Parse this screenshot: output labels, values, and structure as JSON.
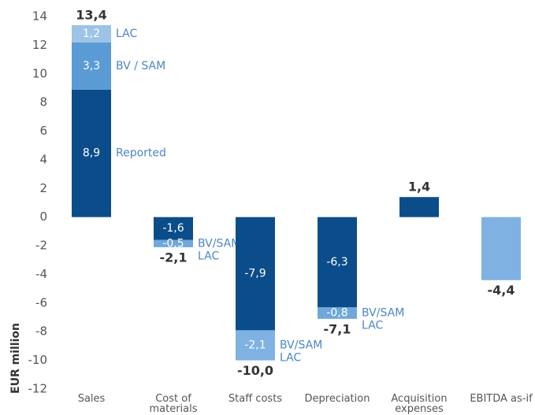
{
  "chart_data": {
    "type": "stacked_bar",
    "ylabel": "EUR million",
    "ylim": [
      -12,
      14
    ],
    "yticks": [
      -12,
      -10,
      -8,
      -6,
      -4,
      -2,
      0,
      2,
      4,
      6,
      8,
      10,
      12,
      14
    ],
    "bars": [
      {
        "category": "Sales",
        "total": 13.4,
        "total_label": "13,4",
        "segments": [
          {
            "value": 8.9,
            "label": "8,9",
            "color": "#0b4d8a",
            "note": [
              "Reported"
            ]
          },
          {
            "value": 3.3,
            "label": "3,3",
            "color": "#5b9bd5",
            "note": [
              "BV / SAM"
            ]
          },
          {
            "value": 1.2,
            "label": "1,2",
            "color": "#9dc3e6",
            "note": [
              "LAC"
            ]
          }
        ]
      },
      {
        "category": "Cost of materials",
        "total": -2.1,
        "total_label": "-2,1",
        "segments": [
          {
            "value": -1.6,
            "label": "-1,6",
            "color": "#0b4d8a"
          },
          {
            "value": -0.5,
            "label": "-0,5",
            "color": "#6fa8dc",
            "note": [
              "BV/SAM",
              "LAC"
            ]
          }
        ]
      },
      {
        "category": "Staff costs",
        "total": -10.0,
        "total_label": "-10,0",
        "segments": [
          {
            "value": -7.9,
            "label": "-7,9",
            "color": "#0b4d8a"
          },
          {
            "value": -2.1,
            "label": "-2,1",
            "color": "#7fb2e3",
            "note": [
              "BV/SAM",
              "LAC"
            ]
          }
        ]
      },
      {
        "category": "Depreciation",
        "total": -7.1,
        "total_label": "-7,1",
        "segments": [
          {
            "value": -6.3,
            "label": "-6,3",
            "color": "#0b4d8a"
          },
          {
            "value": -0.8,
            "label": "-0,8",
            "color": "#6fa8dc",
            "note": [
              "BV/SAM",
              "LAC"
            ]
          }
        ]
      },
      {
        "category": "Acquisition expenses",
        "total": 1.4,
        "total_label": "1,4",
        "segments": [
          {
            "value": 1.4,
            "color": "#0b4d8a"
          }
        ]
      },
      {
        "category": "EBITDA as-if",
        "total": -4.4,
        "total_label": "-4,4",
        "segments": [
          {
            "value": -4.4,
            "color": "#7fb2e3"
          }
        ]
      }
    ]
  }
}
